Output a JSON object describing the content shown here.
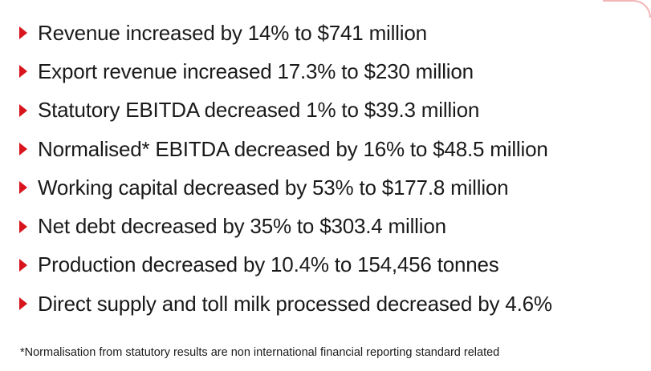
{
  "colors": {
    "bullet": "#d8141c",
    "text": "#1a1a1a",
    "accent_curve": "#f2b6b6"
  },
  "bullets": [
    {
      "icon": "red-triangle-bullet-icon",
      "text": "Revenue increased by 14% to $741 million"
    },
    {
      "icon": "red-triangle-bullet-icon",
      "text": "Export revenue increased 17.3% to $230 million"
    },
    {
      "icon": "red-triangle-bullet-icon",
      "text": "Statutory EBITDA decreased 1% to $39.3 million"
    },
    {
      "icon": "red-triangle-bullet-icon",
      "text": "Normalised* EBITDA decreased by 16% to $48.5 million"
    },
    {
      "icon": "red-triangle-bullet-icon",
      "text": "Working capital decreased by 53% to $177.8 million"
    },
    {
      "icon": "red-triangle-bullet-icon",
      "text": "Net debt decreased by 35% to $303.4 million"
    },
    {
      "icon": "red-triangle-bullet-icon",
      "text": "Production decreased by 10.4% to 154,456 tonnes"
    },
    {
      "icon": "red-triangle-bullet-icon",
      "text": "Direct supply and toll milk processed decreased by 4.6%"
    }
  ],
  "footnote": "*Normalisation from statutory results are non international financial reporting standard related"
}
